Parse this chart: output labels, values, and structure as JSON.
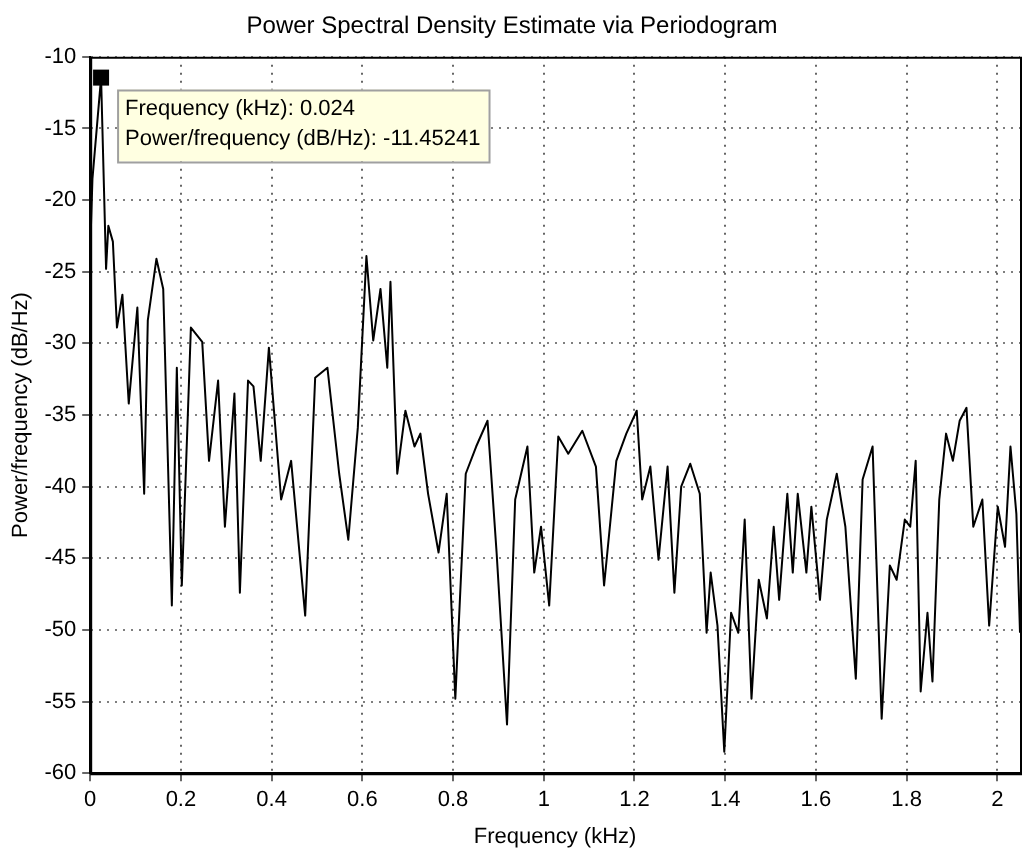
{
  "chart_data": {
    "type": "line",
    "title": "Power Spectral Density Estimate via Periodogram",
    "xlabel": "Frequency (kHz)",
    "ylabel": "Power/frequency (dB/Hz)",
    "xlim": [
      0,
      2.05
    ],
    "xticks": [
      0,
      0.2,
      0.4,
      0.6,
      0.8,
      1,
      1.2,
      1.4,
      1.6,
      1.8,
      2
    ],
    "ylim": [
      -60,
      -10
    ],
    "yticks": [
      -60,
      -55,
      -50,
      -45,
      -40,
      -35,
      -30,
      -25,
      -20,
      -15,
      -10
    ],
    "grid": true,
    "line_style": "solid",
    "marker": "none",
    "annotations": [
      {
        "text": "Frequency (kHz): 0.024\nPower/frequency (dB/Hz): -11.45241",
        "x": 0.024,
        "y": -11.45241
      }
    ],
    "series": [
      {
        "color": "#000000",
        "x": [
          0,
          0.005,
          0.024,
          0.035,
          0.04,
          0.05,
          0.059,
          0.071,
          0.085,
          0.104,
          0.119,
          0.127,
          0.146,
          0.161,
          0.18,
          0.191,
          0.202,
          0.222,
          0.247,
          0.262,
          0.282,
          0.297,
          0.318,
          0.33,
          0.348,
          0.36,
          0.376,
          0.394,
          0.421,
          0.443,
          0.474,
          0.496,
          0.523,
          0.549,
          0.569,
          0.59,
          0.609,
          0.624,
          0.64,
          0.655,
          0.662,
          0.677,
          0.695,
          0.715,
          0.728,
          0.745,
          0.768,
          0.786,
          0.805,
          0.828,
          0.851,
          0.876,
          0.896,
          0.919,
          0.937,
          0.964,
          0.979,
          0.994,
          1.012,
          1.032,
          1.054,
          1.085,
          1.115,
          1.133,
          1.16,
          1.182,
          1.205,
          1.217,
          1.235,
          1.253,
          1.273,
          1.288,
          1.303,
          1.323,
          1.344,
          1.359,
          1.368,
          1.383,
          1.398,
          1.413,
          1.429,
          1.443,
          1.458,
          1.474,
          1.492,
          1.507,
          1.519,
          1.537,
          1.549,
          1.56,
          1.579,
          1.59,
          1.609,
          1.624,
          1.646,
          1.665,
          1.688,
          1.703,
          1.725,
          1.745,
          1.763,
          1.778,
          1.796,
          1.808,
          1.82,
          1.831,
          1.846,
          1.857,
          1.872,
          1.887,
          1.902,
          1.917,
          1.932,
          1.947,
          1.967,
          1.982,
          2.001,
          2.017,
          2.029,
          2.042,
          2.05
        ],
        "values": [
          -23.5,
          -18.5,
          -11.45241,
          -24.8,
          -21.8,
          -22.9,
          -28.9,
          -26.6,
          -34.2,
          -27.5,
          -40.5,
          -28.4,
          -24.1,
          -26.2,
          -48.3,
          -31.7,
          -46.9,
          -28.9,
          -29.9,
          -38.2,
          -32.6,
          -42.8,
          -33.5,
          -47.4,
          -32.6,
          -33,
          -38.2,
          -30.3,
          -40.9,
          -38.2,
          -49,
          -32.4,
          -31.7,
          -39.1,
          -43.7,
          -35.9,
          -23.9,
          -29.8,
          -26.2,
          -31.7,
          -25.7,
          -39.1,
          -34.7,
          -37.2,
          -36.3,
          -40.5,
          -44.6,
          -40.5,
          -54.8,
          -39.1,
          -37.2,
          -35.4,
          -44.6,
          -56.6,
          -40.9,
          -37.2,
          -46,
          -42.8,
          -48.3,
          -36.5,
          -37.7,
          -36.1,
          -38.6,
          -46.9,
          -38.2,
          -36.3,
          -34.7,
          -40.9,
          -38.6,
          -45.1,
          -38.6,
          -47.4,
          -40,
          -38.4,
          -40.5,
          -50.2,
          -46,
          -49.7,
          -58.5,
          -48.8,
          -50.2,
          -42.3,
          -54.8,
          -46.5,
          -49.2,
          -42.8,
          -47.9,
          -40.5,
          -46,
          -40.5,
          -46,
          -41.4,
          -47.9,
          -42.3,
          -39.1,
          -42.8,
          -53.4,
          -39.5,
          -37.2,
          -56.2,
          -45.5,
          -46.5,
          -42.3,
          -42.8,
          -38.2,
          -54.3,
          -48.8,
          -53.6,
          -40.9,
          -36.3,
          -38.2,
          -35.4,
          -34.5,
          -42.8,
          -40.9,
          -49.7,
          -41.4,
          -44.2,
          -37.2,
          -41.9,
          -50.2
        ]
      }
    ]
  }
}
